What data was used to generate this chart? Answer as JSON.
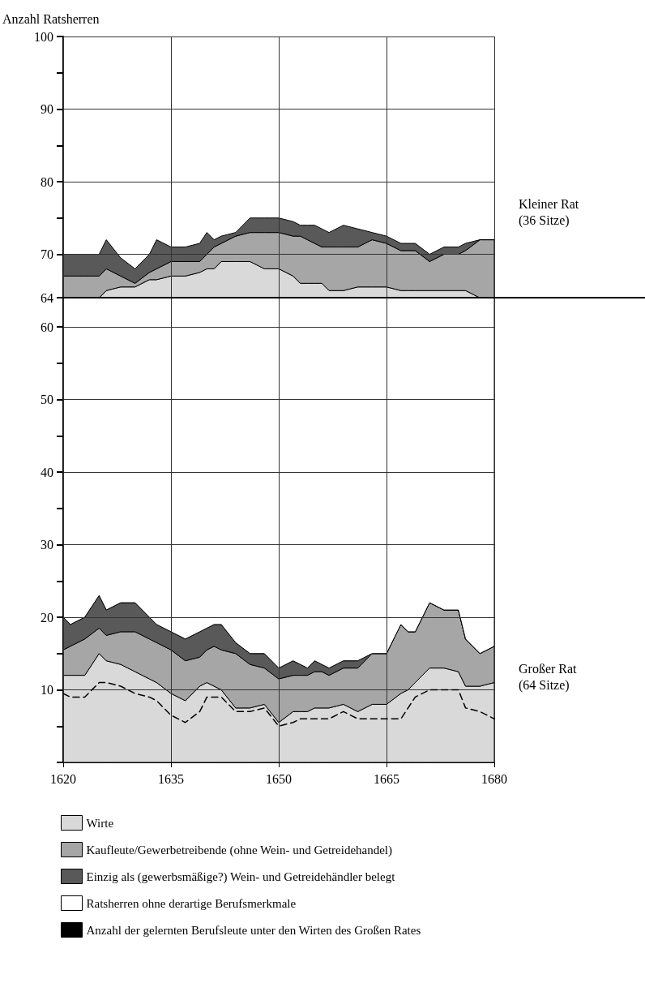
{
  "chart_data": {
    "type": "area",
    "ylabel": "Anzahl Ratsherren",
    "x": [
      1620,
      1621,
      1623,
      1625,
      1626,
      1628,
      1630,
      1632,
      1633,
      1635,
      1637,
      1639,
      1640,
      1641,
      1642,
      1644,
      1646,
      1648,
      1650,
      1652,
      1653,
      1654,
      1655,
      1656,
      1657,
      1659,
      1661,
      1663,
      1665,
      1667,
      1668,
      1669,
      1671,
      1673,
      1675,
      1676,
      1678,
      1680
    ],
    "stacked": true,
    "series": [
      {
        "name": "Wirte",
        "color": "#d9d9d9",
        "values": [
          12,
          12,
          12,
          15,
          14,
          13.5,
          12.5,
          11.5,
          11,
          9.5,
          8.5,
          10.5,
          11,
          10.5,
          10,
          7.5,
          7.5,
          8,
          5.5,
          7,
          7,
          7,
          7.5,
          7.5,
          7.5,
          8,
          7,
          8,
          8,
          9.5,
          10,
          11,
          13,
          13,
          12.5,
          10.5,
          10.5,
          11
        ]
      },
      {
        "name": "Kaufleute/Gewerbetreibende (ohne Wein- und Getreidehandel)",
        "color": "#a6a6a6",
        "values": [
          3.5,
          4,
          5,
          3.5,
          3.5,
          4.5,
          5.5,
          5.5,
          5.5,
          6,
          5.5,
          4,
          4.5,
          5.5,
          5.5,
          7.5,
          6,
          5,
          6,
          5,
          5,
          5,
          5,
          5,
          4.5,
          5,
          6,
          7,
          7,
          9.5,
          8,
          7,
          9,
          8,
          8.5,
          6.5,
          4.5,
          5
        ]
      },
      {
        "name": "Einzig als (gewerbsmäßige?) Wein- und Getreidehändler belegt",
        "color": "#595959",
        "values": [
          4.5,
          3,
          3,
          4.5,
          3.5,
          4,
          4,
          3,
          2.5,
          2.5,
          3,
          3.5,
          3,
          3,
          3.5,
          1.5,
          1.5,
          2,
          1.5,
          2,
          1.5,
          1,
          1.5,
          1,
          1,
          1,
          1,
          0,
          0,
          0,
          0,
          0,
          0,
          0,
          0,
          0,
          0,
          0
        ]
      },
      {
        "name": "Ratsherren ohne derartige Berufsmerkmale",
        "color": "#ffffff",
        "values": [
          44,
          45,
          44,
          41,
          43,
          42,
          42,
          44,
          45,
          46,
          47,
          46,
          45.5,
          45,
          45,
          47.5,
          49,
          49,
          51,
          50,
          50.5,
          51,
          50,
          50.5,
          51,
          50,
          50,
          49,
          49,
          45,
          46,
          46,
          42,
          43,
          43,
          47,
          49,
          48
        ]
      },
      {
        "color": "#d9d9d9",
        "values": [
          0,
          0,
          0,
          0,
          1,
          1.5,
          1.5,
          2.5,
          2.5,
          3,
          3,
          3.5,
          4,
          4,
          5,
          5,
          5,
          4,
          4,
          3,
          2,
          2,
          2,
          2,
          1,
          1,
          1.5,
          1.5,
          1.5,
          1,
          1,
          1,
          1,
          1,
          1,
          1,
          0,
          0
        ]
      },
      {
        "color": "#a6a6a6",
        "values": [
          3,
          3,
          3,
          3,
          3,
          1.5,
          0.5,
          1,
          1.5,
          2,
          2,
          1.5,
          2,
          3,
          2.5,
          3.5,
          4,
          5,
          5,
          5.5,
          6.5,
          6,
          5.5,
          5,
          6,
          6,
          5.5,
          6.5,
          6,
          5.5,
          5.5,
          5.5,
          4,
          5,
          5,
          5.5,
          8,
          8
        ]
      },
      {
        "color": "#595959",
        "values": [
          3,
          3,
          3,
          3,
          4,
          2.5,
          2,
          2.5,
          4,
          2,
          2,
          2.5,
          3,
          1,
          1,
          0.5,
          2,
          2,
          2,
          2,
          1.5,
          2,
          2.5,
          2.5,
          2,
          3,
          2.5,
          1,
          1,
          1,
          1,
          1,
          1,
          1,
          1,
          1,
          0,
          0
        ]
      },
      {
        "name": "Anzahl der gelernten Berufsleute unter den Wirten des Großen Rates",
        "type": "line",
        "color": "#000000",
        "line_style": "dashed",
        "marker": "none",
        "values": [
          9.5,
          9,
          9,
          11,
          11,
          10.5,
          9.5,
          9,
          8.5,
          6.5,
          5.5,
          7,
          9,
          9,
          9,
          7,
          7,
          7.5,
          5,
          5.5,
          6,
          6,
          6,
          6,
          6,
          7,
          6,
          6,
          6,
          6,
          7.5,
          9,
          10,
          10,
          10,
          7.5,
          7,
          6
        ]
      }
    ],
    "xlim": [
      1620,
      1680
    ],
    "xticks": [
      1620,
      1635,
      1650,
      1665,
      1680
    ],
    "ylim": [
      0,
      100
    ],
    "yticks": [
      {
        "value": 0,
        "label": null
      },
      {
        "value": 5,
        "label": null
      },
      10,
      {
        "value": 15,
        "label": null
      },
      20,
      {
        "value": 25,
        "label": null
      },
      30,
      {
        "value": 35,
        "label": null
      },
      40,
      {
        "value": 45,
        "label": null
      },
      50,
      {
        "value": 55,
        "label": null
      },
      60,
      64,
      70,
      {
        "value": 75,
        "label": null
      },
      80,
      {
        "value": 85,
        "label": null
      },
      90,
      {
        "value": 95,
        "label": null
      },
      100
    ],
    "ref_lines": [
      {
        "axis": "y",
        "value": 64,
        "color": "#000000"
      }
    ],
    "annotations": [
      "Kleiner Rat (36 Sitze)",
      "Großer Rat (64 Sitze)"
    ],
    "grid": true,
    "legend": "bottom"
  }
}
